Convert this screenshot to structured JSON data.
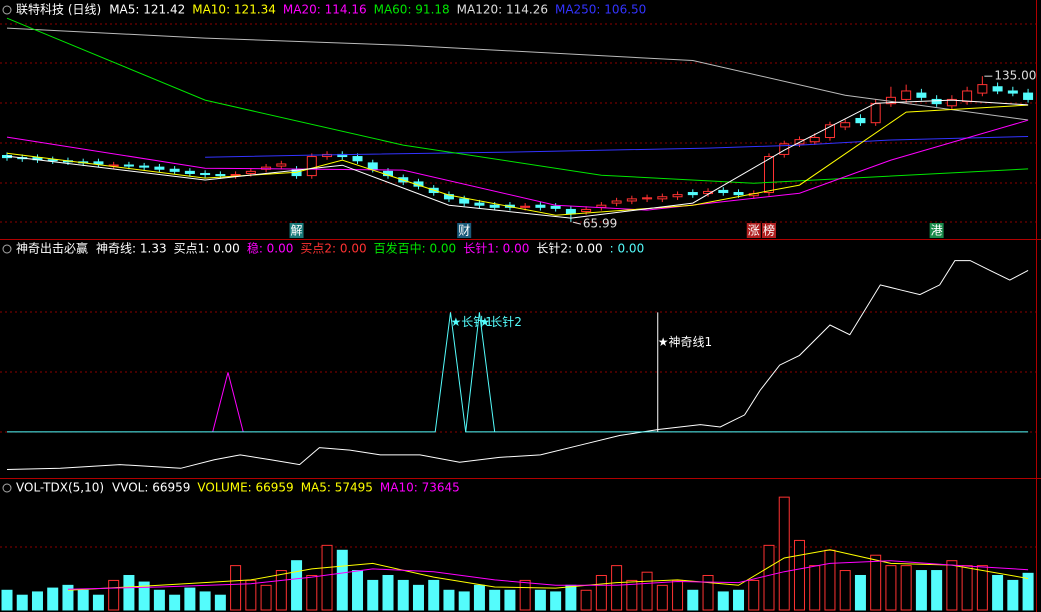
{
  "chart_data": [
    {
      "type": "candlestick",
      "title": "联特科技 (日线)",
      "legend": [
        {
          "text": "MA5: 121.42",
          "color": "#ffffff"
        },
        {
          "text": "MA10: 121.34",
          "color": "#ffff00"
        },
        {
          "text": "MA20: 114.16",
          "color": "#ff00ff"
        },
        {
          "text": "MA60: 91.18",
          "color": "#00e600"
        },
        {
          "text": "MA120: 114.26",
          "color": "#dddddd"
        },
        {
          "text": "MA250: 106.50",
          "color": "#3333ff"
        }
      ],
      "ylim": [
        58.5,
        171
      ],
      "up_color": "#ff3232",
      "down_color": "#54fcfc",
      "open": [
        97.5,
        96.5,
        96.5,
        95.5,
        95,
        94.5,
        94.5,
        92.5,
        93,
        92.5,
        92,
        91,
        90,
        89,
        88.5,
        88,
        89,
        91,
        92.5,
        91,
        88,
        97,
        98,
        97,
        94,
        90,
        87,
        85,
        82,
        79,
        77,
        75,
        74,
        74,
        73,
        74,
        73.5,
        72,
        71,
        73,
        75,
        76,
        77,
        77,
        78,
        80,
        79.5,
        81,
        80,
        78.5,
        80,
        98,
        103,
        104,
        106,
        111,
        115,
        113,
        122,
        124,
        127,
        124,
        121,
        123,
        127,
        130,
        128,
        127
      ],
      "high": [
        99,
        98,
        98,
        97,
        96.5,
        96,
        96,
        94.5,
        94.5,
        94,
        93.5,
        92.5,
        91.5,
        90.5,
        90,
        90,
        91.5,
        93.5,
        95,
        92.5,
        98.5,
        99.5,
        99.5,
        98.5,
        95.5,
        91.5,
        88.5,
        86.5,
        83.5,
        80.5,
        78.5,
        76.5,
        75.5,
        75.5,
        75,
        75.5,
        75,
        73.5,
        73.5,
        75.5,
        77.5,
        78.5,
        79,
        79.5,
        80.5,
        81.5,
        82,
        82.5,
        81.5,
        81,
        98.5,
        104.5,
        106.5,
        108,
        113.5,
        114.5,
        117,
        124,
        130,
        131,
        129,
        126,
        126,
        130,
        135,
        132,
        130,
        129
      ],
      "low": [
        95,
        94.5,
        94,
        93.5,
        93,
        92.5,
        92,
        91,
        91,
        90.5,
        89.5,
        88.5,
        87.5,
        87,
        86.5,
        86.5,
        87.5,
        89.5,
        91,
        86.5,
        86.5,
        95.5,
        95.5,
        93.5,
        89.5,
        86.5,
        83.5,
        81.5,
        78.5,
        75.5,
        73.5,
        72.5,
        71.5,
        71.5,
        71.5,
        71.5,
        71,
        65.99,
        69.5,
        71.5,
        73.5,
        74.5,
        75.5,
        75.5,
        76.5,
        77.5,
        78,
        78.5,
        77.5,
        77,
        78.5,
        96.5,
        101.5,
        102.5,
        104.5,
        109.5,
        111.5,
        111.5,
        120.5,
        122.5,
        123.5,
        120.5,
        119.5,
        121.5,
        125.5,
        126.5,
        125.5,
        122.5
      ],
      "close": [
        96.5,
        96,
        95.5,
        95,
        94.5,
        94,
        93.5,
        93,
        92.5,
        92,
        91,
        90,
        89,
        88.5,
        88,
        88.5,
        90,
        92,
        93.5,
        88,
        97,
        98,
        97,
        95,
        91,
        88,
        85,
        83,
        80,
        77,
        75,
        74,
        73,
        73,
        73.5,
        73,
        72.5,
        70,
        72,
        74,
        76,
        77,
        77.5,
        78,
        79,
        79,
        80.5,
        80,
        79,
        79.5,
        97,
        103,
        105,
        106,
        112,
        113,
        113,
        122,
        125,
        128,
        125,
        122,
        124,
        128,
        131,
        128,
        127,
        124
      ],
      "series": [
        {
          "color": "#3333ff",
          "x": [
            13,
            20,
            33,
            46,
            52,
            58,
            67
          ],
          "values": [
            96.7,
            97.7,
            99.1,
            101,
            102.4,
            104.8,
            106.5
          ]
        },
        {
          "color": "#bbbbbb",
          "x": [
            0,
            13,
            26,
            45,
            55,
            67
          ],
          "values": [
            157.7,
            153,
            149.6,
            142.4,
            126,
            114.3
          ]
        },
        {
          "color": "#00e600",
          "x": [
            0,
            13,
            26,
            39,
            49,
            67
          ],
          "values": [
            162.4,
            123.7,
            102.4,
            88.2,
            84.4,
            91.18
          ]
        },
        {
          "color": "#ff00ff",
          "x": [
            0,
            13,
            26,
            36,
            42,
            52,
            58,
            67
          ],
          "values": [
            106.2,
            91.5,
            90.6,
            74,
            71.7,
            79.7,
            95.3,
            114.16
          ]
        },
        {
          "color": "#ffff00",
          "x": [
            0,
            13,
            19,
            22,
            29,
            36,
            45,
            52,
            59,
            67
          ],
          "values": [
            98.6,
            86.8,
            89.6,
            95.3,
            78.8,
            69.3,
            74,
            83.5,
            118,
            121.34
          ]
        },
        {
          "color": "#ffffff",
          "x": [
            0,
            13,
            22,
            29,
            37,
            45,
            51,
            57,
            62,
            67
          ],
          "values": [
            97.2,
            85.9,
            92.9,
            74,
            67.9,
            75,
            100,
            122.2,
            123.7,
            121.42
          ]
        }
      ],
      "price_labels": [
        {
          "text": "135.00",
          "at": 64,
          "value": 135
        },
        {
          "text": "65.99",
          "at": 37,
          "value": 65.99
        }
      ],
      "markers": [
        {
          "text": "解",
          "at": 19,
          "color": "#1a7a7a"
        },
        {
          "text": "财",
          "at": 30,
          "color": "#1a5a7a"
        },
        {
          "text": "涨",
          "at": 49,
          "color": "#b02020"
        },
        {
          "text": "榜",
          "at": 50,
          "color": "#b02020"
        },
        {
          "text": "港",
          "at": 61,
          "color": "#1a8a4a"
        }
      ]
    },
    {
      "type": "line",
      "title": "神奇出击必赢",
      "legend": [
        {
          "text": "神奇线: 1.33",
          "color": "#ffffff"
        },
        {
          "text": "买点1: 0.00",
          "color": "#ffffff"
        },
        {
          "text": "稳: 0.00",
          "color": "#ff00ff"
        },
        {
          "text": "买点2: 0.00",
          "color": "#ff3232"
        },
        {
          "text": "百发百中: 0.00",
          "color": "#00e600"
        },
        {
          "text": "长针1: 0.00",
          "color": "#ff00ff"
        },
        {
          "text": "长针2: 0.00",
          "color": "#ffffff"
        },
        {
          "text": ": 0.00",
          "color": "#54fcfc"
        }
      ],
      "ylim": [
        -0.38,
        1.58
      ],
      "series": [
        {
          "color": "#ffffff",
          "x": [
            0,
            3.5,
            7.4,
            11.4,
            13.6,
            15.3,
            17.3,
            19.2,
            20.5,
            22.5,
            24.5,
            27.1,
            29.7,
            32.3,
            35,
            37.6,
            40.2,
            42.8,
            45.5,
            46.8,
            48.4,
            49.4,
            50.7,
            52,
            54,
            55.3,
            57.3,
            58.6,
            59.9,
            61.2,
            62.2,
            63.2,
            64.5,
            65.8,
            67
          ],
          "values": [
            -0.31,
            -0.3,
            -0.27,
            -0.3,
            -0.23,
            -0.19,
            -0.23,
            -0.27,
            -0.13,
            -0.15,
            -0.19,
            -0.19,
            -0.25,
            -0.21,
            -0.19,
            -0.11,
            -0.03,
            0.02,
            0.06,
            0.04,
            0.14,
            0.34,
            0.55,
            0.63,
            0.88,
            0.8,
            1.21,
            1.17,
            1.13,
            1.21,
            1.41,
            1.41,
            1.33,
            1.25,
            1.33
          ]
        },
        {
          "color": "#ff00ff",
          "x": [
            13.5,
            14.5,
            15.5
          ],
          "values": [
            0,
            0.49,
            0
          ]
        },
        {
          "color": "#54fcfc",
          "x": [
            0,
            28.1,
            29.1,
            30.1,
            67
          ],
          "values": [
            0,
            0,
            0.985,
            0,
            0
          ]
        },
        {
          "color": "#54fcfc",
          "x": [
            30.1,
            31,
            32
          ],
          "values": [
            0,
            0.985,
            0
          ]
        }
      ],
      "signals": [
        {
          "text": "★长针1",
          "at": 29.1,
          "value": 0.9,
          "color": "#54fcfc"
        },
        {
          "text": "★长针2",
          "at": 31,
          "value": 0.9,
          "color": "#54fcfc"
        },
        {
          "text": "★神奇线1",
          "at": 42.7,
          "value": 0.49,
          "color": "#ffffff"
        }
      ]
    },
    {
      "type": "bar",
      "title": "VOL-TDX(5,10)",
      "legend": [
        {
          "text": "VVOL: 66959",
          "color": "#ffffff"
        },
        {
          "text": "VOLUME: 66959",
          "color": "#ffff00"
        },
        {
          "text": "MA5: 57495",
          "color": "#ffff00"
        },
        {
          "text": "MA10: 73645",
          "color": "#ff00ff"
        }
      ],
      "ylim": [
        0,
        230000
      ],
      "values": [
        36000,
        27000,
        33000,
        40000,
        45000,
        36000,
        27000,
        54000,
        63000,
        51000,
        36000,
        27000,
        40000,
        33000,
        27000,
        81000,
        54000,
        45000,
        72000,
        90000,
        63000,
        118000,
        109000,
        72000,
        54000,
        63000,
        54000,
        45000,
        54000,
        36000,
        33000,
        45000,
        36000,
        36000,
        54000,
        36000,
        33000,
        45000,
        36000,
        63000,
        81000,
        54000,
        69000,
        45000,
        54000,
        36000,
        63000,
        33000,
        36000,
        54000,
        118000,
        206000,
        127000,
        81000,
        109000,
        72000,
        63000,
        100000,
        81000,
        81000,
        72000,
        72000,
        90000,
        81000,
        81000,
        63000,
        54000,
        66959
      ],
      "series": [
        {
          "color": "#ffff00",
          "x": [
            4,
            10,
            16,
            20,
            24,
            28,
            32,
            36,
            40,
            44,
            48,
            51,
            54,
            58,
            62,
            67
          ],
          "values": [
            36000,
            45000,
            55000,
            75000,
            85000,
            60000,
            42000,
            40000,
            50000,
            55000,
            45000,
            95000,
            110000,
            85000,
            82000,
            57495
          ]
        },
        {
          "color": "#ff00ff",
          "x": [
            4,
            10,
            16,
            20,
            24,
            28,
            32,
            36,
            40,
            44,
            48,
            51,
            54,
            58,
            62,
            67
          ],
          "values": [
            38000,
            42000,
            48000,
            60000,
            75000,
            70000,
            55000,
            45000,
            45000,
            52000,
            50000,
            70000,
            85000,
            90000,
            82000,
            73645
          ]
        }
      ]
    }
  ]
}
